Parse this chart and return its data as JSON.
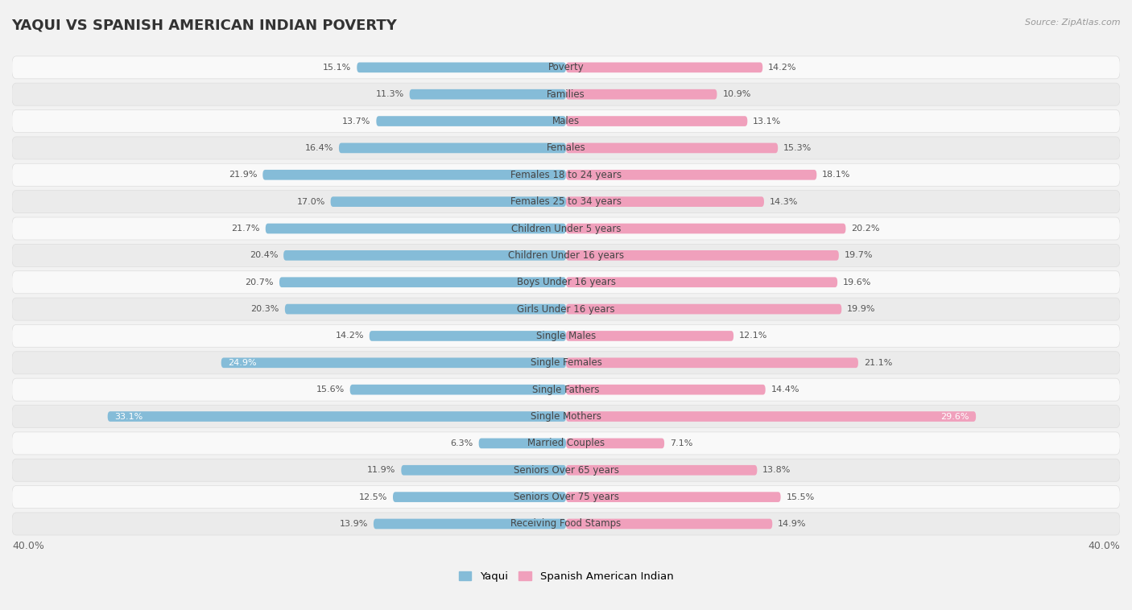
{
  "title": "YAQUI VS SPANISH AMERICAN INDIAN POVERTY",
  "source": "Source: ZipAtlas.com",
  "categories": [
    "Poverty",
    "Families",
    "Males",
    "Females",
    "Females 18 to 24 years",
    "Females 25 to 34 years",
    "Children Under 5 years",
    "Children Under 16 years",
    "Boys Under 16 years",
    "Girls Under 16 years",
    "Single Males",
    "Single Females",
    "Single Fathers",
    "Single Mothers",
    "Married Couples",
    "Seniors Over 65 years",
    "Seniors Over 75 years",
    "Receiving Food Stamps"
  ],
  "yaqui": [
    15.1,
    11.3,
    13.7,
    16.4,
    21.9,
    17.0,
    21.7,
    20.4,
    20.7,
    20.3,
    14.2,
    24.9,
    15.6,
    33.1,
    6.3,
    11.9,
    12.5,
    13.9
  ],
  "spanish": [
    14.2,
    10.9,
    13.1,
    15.3,
    18.1,
    14.3,
    20.2,
    19.7,
    19.6,
    19.9,
    12.1,
    21.1,
    14.4,
    29.6,
    7.1,
    13.8,
    15.5,
    14.9
  ],
  "yaqui_color": "#85bcd8",
  "spanish_color": "#f0a0bc",
  "background_color": "#f2f2f2",
  "row_bg_light": "#f9f9f9",
  "row_bg_dark": "#ebebeb",
  "row_border": "#dddddd",
  "xlim": 40.0,
  "legend_labels": [
    "Yaqui",
    "Spanish American Indian"
  ],
  "title_fontsize": 13,
  "label_fontsize": 8.5,
  "value_fontsize": 8.0
}
